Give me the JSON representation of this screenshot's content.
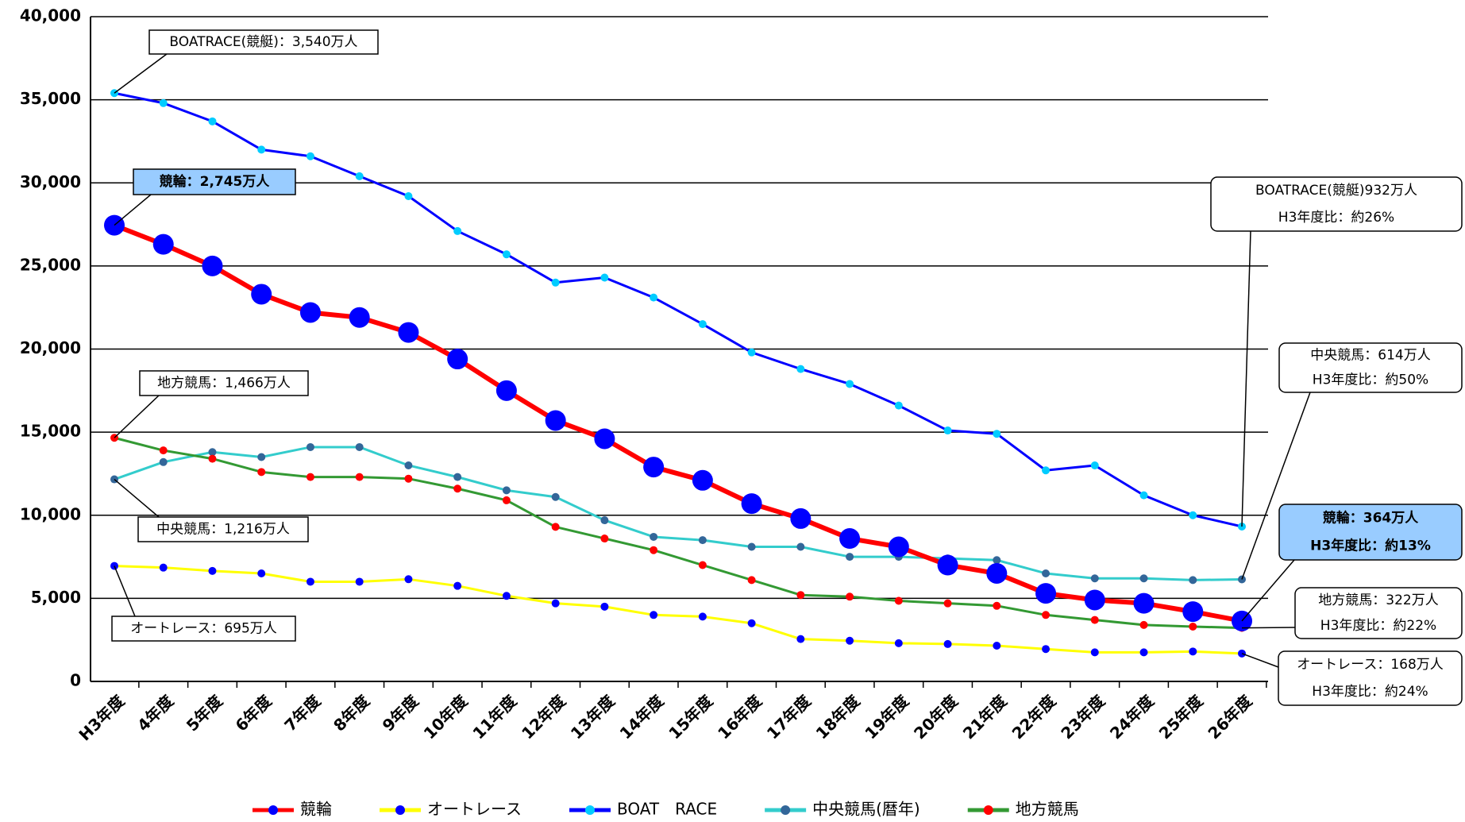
{
  "chart_data": {
    "type": "line",
    "categories": [
      "H3年度",
      "4年度",
      "5年度",
      "6年度",
      "7年度",
      "8年度",
      "9年度",
      "10年度",
      "11年度",
      "12年度",
      "13年度",
      "14年度",
      "15年度",
      "16年度",
      "17年度",
      "18年度",
      "19年度",
      "20年度",
      "21年度",
      "22年度",
      "23年度",
      "24年度",
      "25年度",
      "26年度"
    ],
    "series": [
      {
        "name": "競輪",
        "color": "#ff0000",
        "marker_color": "#0000ff",
        "values": [
          27450,
          26300,
          25000,
          23300,
          22200,
          21900,
          21000,
          19400,
          17500,
          15700,
          14600,
          12900,
          12100,
          10700,
          9800,
          8600,
          8100,
          7000,
          6500,
          5300,
          4900,
          4700,
          4200,
          3640
        ]
      },
      {
        "name": "オートレース",
        "color": "#ffff00",
        "marker_color": "#0000ff",
        "values": [
          6950,
          6850,
          6650,
          6500,
          6000,
          6000,
          6150,
          5750,
          5150,
          4700,
          4500,
          4000,
          3900,
          3500,
          2550,
          2450,
          2300,
          2250,
          2150,
          1950,
          1750,
          1750,
          1800,
          1680
        ]
      },
      {
        "name": "BOAT　RACE",
        "color": "#0000ff",
        "marker_color": "#00ccff",
        "values": [
          35400,
          34800,
          33700,
          32000,
          31600,
          30400,
          29200,
          27100,
          25700,
          24000,
          24300,
          23100,
          21500,
          19800,
          18800,
          17900,
          16600,
          15100,
          14900,
          12700,
          13000,
          11200,
          10000,
          9320
        ]
      },
      {
        "name": "中央競馬(暦年)",
        "color": "#33cccc",
        "marker_color": "#336699",
        "values": [
          12160,
          13200,
          13800,
          13500,
          14100,
          14100,
          13000,
          12300,
          11500,
          11100,
          9700,
          8700,
          8500,
          8100,
          8100,
          7500,
          7500,
          7400,
          7300,
          6500,
          6200,
          6200,
          6100,
          6140
        ]
      },
      {
        "name": "地方競馬",
        "color": "#339933",
        "marker_color": "#ff0000",
        "values": [
          14660,
          13900,
          13400,
          12600,
          12300,
          12300,
          12200,
          11600,
          10900,
          9300,
          8600,
          7900,
          7000,
          6100,
          5200,
          5100,
          4850,
          4700,
          4550,
          4000,
          3700,
          3400,
          3300,
          3220
        ]
      }
    ],
    "ylim": [
      0,
      40000
    ],
    "yticks": [
      0,
      {
        "value": 5000,
        "label": "5,000"
      },
      {
        "value": 10000,
        "label": "10,000"
      },
      {
        "value": 15000,
        "label": "15,000"
      },
      {
        "value": 20000,
        "label": "20,000"
      },
      {
        "value": 25000,
        "label": "25,000"
      },
      {
        "value": 30000,
        "label": "30,000"
      },
      {
        "value": 35000,
        "label": "35,000"
      },
      {
        "value": 40000,
        "label": "40,000"
      }
    ],
    "grid": true,
    "legend": "bottom",
    "annotations": [
      {
        "lines": [
          "BOATRACE(競艇)：3,540万人"
        ]
      },
      {
        "lines": [
          "競輪：2,745万人"
        ]
      },
      {
        "lines": [
          "地方競馬：1,466万人"
        ]
      },
      {
        "lines": [
          "中央競馬：1,216万人"
        ]
      },
      {
        "lines": [
          "オートレース：695万人"
        ]
      },
      {
        "lines": [
          "BOATRACE(競艇)932万人",
          "H3年度比：約26%"
        ]
      },
      {
        "lines": [
          "中央競馬：614万人",
          "H3年度比：約50%"
        ]
      },
      {
        "lines": [
          "競輪：364万人",
          "H3年度比：約13%"
        ]
      },
      {
        "lines": [
          "地方競馬：322万人",
          "H3年度比：約22%"
        ]
      },
      {
        "lines": [
          "オートレース：168万人",
          "H3年度比：約24%"
        ]
      }
    ]
  }
}
